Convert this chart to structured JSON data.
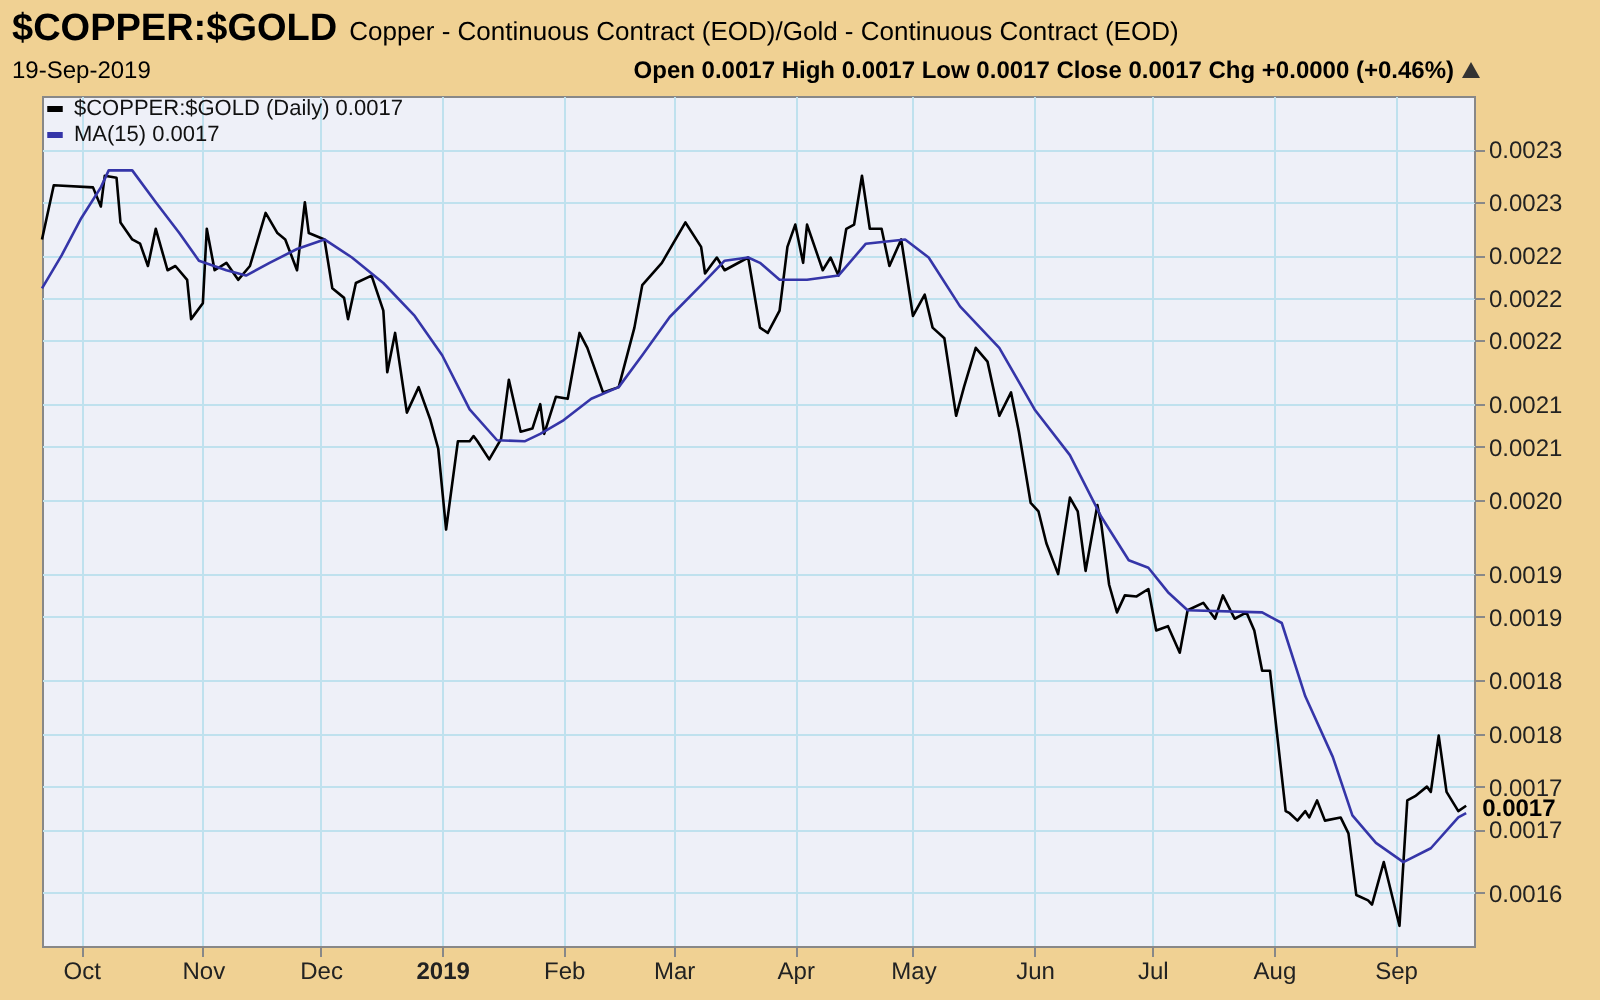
{
  "chart_data": {
    "type": "line",
    "title": "$COPPER:$GOLD",
    "subtitle": "Copper - Continuous Contract (EOD)/Gold - Continuous Contract (EOD)",
    "annotations": [
      "19-Sep-2019",
      "Open 0.0017 High 0.0017 Low 0.0017 Close 0.0017 Chg +0.0000 (+0.46%)",
      {
        "text": "0.0017",
        "x": "2019-09-19",
        "y": 0.00172
      }
    ],
    "xlim": [
      "2018-09-21",
      "2019-09-21"
    ],
    "xticks": [
      {
        "value": "2018-10-01",
        "label": "Oct"
      },
      {
        "value": "2018-11-01",
        "label": "Nov"
      },
      {
        "value": "2018-12-01",
        "label": "Dec"
      },
      {
        "value": "2019-01-01",
        "label": "2019"
      },
      {
        "value": "2019-02-01",
        "label": "Feb"
      },
      {
        "value": "2019-03-01",
        "label": "Mar"
      },
      {
        "value": "2019-04-01",
        "label": "Apr"
      },
      {
        "value": "2019-05-01",
        "label": "May"
      },
      {
        "value": "2019-06-01",
        "label": "Jun"
      },
      {
        "value": "2019-07-01",
        "label": "Jul"
      },
      {
        "value": "2019-08-01",
        "label": "Aug"
      },
      {
        "value": "2019-09-01",
        "label": "Sep"
      }
    ],
    "ylim": [
      0.00159,
      0.00239
    ],
    "yticks": [
      {
        "value": 0.00234,
        "label": "0.0023"
      },
      {
        "value": 0.00229,
        "label": "0.0023"
      },
      {
        "value": 0.00224,
        "label": "0.0022"
      },
      {
        "value": 0.0022,
        "label": "0.0022"
      },
      {
        "value": 0.00216,
        "label": "0.0022"
      },
      {
        "value": 0.0021,
        "label": "0.0021"
      },
      {
        "value": 0.00206,
        "label": "0.0021"
      },
      {
        "value": 0.00201,
        "label": "0.0020"
      },
      {
        "value": 0.00194,
        "label": "0.0019"
      },
      {
        "value": 0.0019,
        "label": "0.0019"
      },
      {
        "value": 0.00184,
        "label": "0.0018"
      },
      {
        "value": 0.00179,
        "label": "0.0018"
      },
      {
        "value": 0.00174,
        "label": "0.0017"
      },
      {
        "value": 0.0017,
        "label": "0.0017"
      },
      {
        "value": 0.00164,
        "label": "0.0016"
      }
    ],
    "grid": true,
    "legend": "top left",
    "series": [
      {
        "name": "$COPPER:$GOLD (Daily) 0.0017",
        "color": "#000000",
        "x": [
          "2018-09-21",
          "2018-09-24",
          "2018-10-04",
          "2018-10-06",
          "2018-10-07",
          "2018-10-10",
          "2018-10-11",
          "2018-10-14",
          "2018-10-16",
          "2018-10-18",
          "2018-10-20",
          "2018-10-23",
          "2018-10-25",
          "2018-10-28",
          "2018-10-29",
          "2018-11-01",
          "2018-11-02",
          "2018-11-04",
          "2018-11-07",
          "2018-11-10",
          "2018-11-13",
          "2018-11-17",
          "2018-11-20",
          "2018-11-22",
          "2018-11-25",
          "2018-11-27",
          "2018-11-28",
          "2018-12-02",
          "2018-12-04",
          "2018-12-07",
          "2018-12-08",
          "2018-12-10",
          "2018-12-14",
          "2018-12-17",
          "2018-12-18",
          "2018-12-20",
          "2018-12-23",
          "2018-12-26",
          "2018-12-29",
          "2018-12-31",
          "2019-01-02",
          "2019-01-05",
          "2019-01-08",
          "2019-01-09",
          "2019-01-10",
          "2019-01-13",
          "2019-01-16",
          "2019-01-18",
          "2019-01-21",
          "2019-01-24",
          "2019-01-26",
          "2019-01-27",
          "2019-01-30",
          "2019-02-02",
          "2019-02-05",
          "2019-02-07",
          "2019-02-11",
          "2019-02-15",
          "2019-02-19",
          "2019-02-21",
          "2019-02-26",
          "2019-03-04",
          "2019-03-08",
          "2019-03-09",
          "2019-03-12",
          "2019-03-14",
          "2019-03-20",
          "2019-03-23",
          "2019-03-25",
          "2019-03-28",
          "2019-03-30",
          "2019-04-01",
          "2019-04-03",
          "2019-04-04",
          "2019-04-08",
          "2019-04-10",
          "2019-04-12",
          "2019-04-14",
          "2019-04-16",
          "2019-04-18",
          "2019-04-20",
          "2019-04-23",
          "2019-04-25",
          "2019-04-28",
          "2019-05-01",
          "2019-05-04",
          "2019-05-06",
          "2019-05-09",
          "2019-05-12",
          "2019-05-14",
          "2019-05-17",
          "2019-05-20",
          "2019-05-23",
          "2019-05-26",
          "2019-05-28",
          "2019-05-31",
          "2019-06-02",
          "2019-06-04",
          "2019-06-07",
          "2019-06-10",
          "2019-06-12",
          "2019-06-14",
          "2019-06-17",
          "2019-06-18",
          "2019-06-20",
          "2019-06-22",
          "2019-06-24",
          "2019-06-27",
          "2019-06-30",
          "2019-07-02",
          "2019-07-05",
          "2019-07-08",
          "2019-07-10",
          "2019-07-14",
          "2019-07-17",
          "2019-07-19",
          "2019-07-22",
          "2019-07-25",
          "2019-07-27",
          "2019-07-29",
          "2019-07-31",
          "2019-08-04",
          "2019-08-05",
          "2019-08-07",
          "2019-08-09",
          "2019-08-10",
          "2019-08-12",
          "2019-08-14",
          "2019-08-18",
          "2019-08-20",
          "2019-08-22",
          "2019-08-25",
          "2019-08-26",
          "2019-08-29",
          "2019-09-02",
          "2019-09-04",
          "2019-09-06",
          "2019-09-09",
          "2019-09-10",
          "2019-09-12",
          "2019-09-14",
          "2019-09-17",
          "2019-09-19"
        ],
        "values": [
          0.002255,
          0.002306,
          0.002304,
          0.002286,
          0.002315,
          0.002313,
          0.002271,
          0.002255,
          0.002251,
          0.00223,
          0.002265,
          0.002226,
          0.00223,
          0.002217,
          0.00218,
          0.002195,
          0.002265,
          0.002226,
          0.002233,
          0.002217,
          0.00223,
          0.00228,
          0.002261,
          0.002255,
          0.002226,
          0.00229,
          0.002261,
          0.002255,
          0.002209,
          0.0022,
          0.00218,
          0.002214,
          0.002221,
          0.002188,
          0.00213,
          0.002167,
          0.002092,
          0.002116,
          0.002085,
          0.002058,
          0.001982,
          0.002065,
          0.002065,
          0.00207,
          0.002065,
          0.002048,
          0.002067,
          0.002123,
          0.002074,
          0.002077,
          0.0021,
          0.002072,
          0.002107,
          0.002105,
          0.002167,
          0.002153,
          0.002111,
          0.002116,
          0.002172,
          0.002212,
          0.002233,
          0.002271,
          0.002248,
          0.002223,
          0.002238,
          0.002226,
          0.002238,
          0.002172,
          0.002167,
          0.002188,
          0.002248,
          0.002269,
          0.002233,
          0.002269,
          0.002226,
          0.002238,
          0.002221,
          0.002265,
          0.002269,
          0.002315,
          0.002265,
          0.002265,
          0.00223,
          0.002255,
          0.002183,
          0.002203,
          0.002172,
          0.002162,
          0.002089,
          0.002116,
          0.002153,
          0.00214,
          0.002089,
          0.002111,
          0.002074,
          0.002007,
          0.001999,
          0.001969,
          0.00194,
          0.002012,
          0.001999,
          0.001943,
          0.002005,
          0.001987,
          0.00193,
          0.001904,
          0.00192,
          0.001919,
          0.001926,
          0.001887,
          0.001891,
          0.001866,
          0.001906,
          0.001913,
          0.001898,
          0.00192,
          0.001898,
          0.001904,
          0.001887,
          0.001849,
          0.001849,
          0.001717,
          0.001715,
          0.001708,
          0.001717,
          0.001711,
          0.001727,
          0.001708,
          0.001711,
          0.001696,
          0.001638,
          0.001633,
          0.001629,
          0.001669,
          0.001609,
          0.001727,
          0.001731,
          0.00174,
          0.001735,
          0.001788,
          0.001735,
          0.001717,
          0.001722
        ]
      },
      {
        "name": "MA(15) 0.0017",
        "color": "#3535a8",
        "x": [
          "2018-09-21",
          "2018-09-26",
          "2018-10-01",
          "2018-10-06",
          "2018-10-08",
          "2018-10-14",
          "2018-10-20",
          "2018-10-26",
          "2018-10-31",
          "2018-11-07",
          "2018-11-12",
          "2018-11-18",
          "2018-11-25",
          "2018-12-02",
          "2018-12-09",
          "2018-12-17",
          "2018-12-25",
          "2019-01-01",
          "2019-01-08",
          "2019-01-15",
          "2019-01-22",
          "2019-01-26",
          "2019-02-01",
          "2019-02-08",
          "2019-02-15",
          "2019-02-21",
          "2019-02-28",
          "2019-03-08",
          "2019-03-14",
          "2019-03-20",
          "2019-03-23",
          "2019-03-28",
          "2019-04-04",
          "2019-04-12",
          "2019-04-19",
          "2019-04-29",
          "2019-05-05",
          "2019-05-13",
          "2019-05-23",
          "2019-06-01",
          "2019-06-10",
          "2019-06-18",
          "2019-06-25",
          "2019-06-30",
          "2019-07-05",
          "2019-07-10",
          "2019-07-29",
          "2019-08-03",
          "2019-08-09",
          "2019-08-16",
          "2019-08-21",
          "2019-08-27",
          "2019-09-03",
          "2019-09-10",
          "2019-09-17",
          "2019-09-19"
        ],
        "values": [
          0.002209,
          0.00224,
          0.002275,
          0.002304,
          0.00232,
          0.00232,
          0.00229,
          0.002261,
          0.002235,
          0.002226,
          0.002221,
          0.002233,
          0.002246,
          0.002255,
          0.002238,
          0.002214,
          0.002183,
          0.002146,
          0.002095,
          0.002066,
          0.002065,
          0.002072,
          0.002085,
          0.002105,
          0.002116,
          0.002146,
          0.002182,
          0.002212,
          0.002235,
          0.002238,
          0.002233,
          0.002217,
          0.002217,
          0.002221,
          0.002251,
          0.002255,
          0.002238,
          0.002192,
          0.002153,
          0.002095,
          0.002052,
          0.001994,
          0.001953,
          0.001946,
          0.001923,
          0.001906,
          0.001904,
          0.001894,
          0.001825,
          0.001768,
          0.001713,
          0.001687,
          0.001669,
          0.001682,
          0.001711,
          0.001715
        ]
      }
    ]
  }
}
